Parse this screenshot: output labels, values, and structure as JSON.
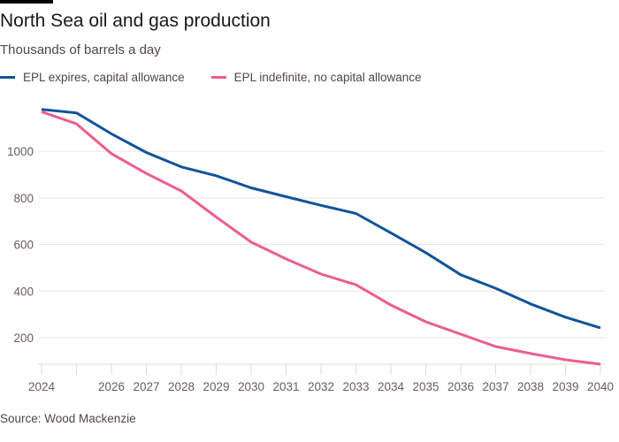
{
  "header": {
    "title": "North Sea oil and gas production",
    "subtitle": "Thousands of barrels a day"
  },
  "legend": [
    {
      "label": "EPL expires, capital allowance",
      "color": "#0f5499"
    },
    {
      "label": "EPL indefinite, no capital allowance",
      "color": "#eb5e8d"
    }
  ],
  "footer": {
    "source": "Source: Wood Mackenzie"
  },
  "chart_data": {
    "type": "line",
    "title": "North Sea oil and gas production",
    "subtitle": "Thousands of barrels a day",
    "xlabel": "",
    "ylabel": "Thousands of barrels a day",
    "x": [
      2024,
      2025,
      2026,
      2027,
      2028,
      2029,
      2030,
      2031,
      2032,
      2033,
      2034,
      2035,
      2036,
      2037,
      2038,
      2039,
      2040
    ],
    "x_tick_labels": [
      "2024",
      "",
      "2026",
      "2027",
      "2028",
      "2029",
      "2030",
      "2031",
      "2032",
      "2033",
      "2034",
      "2035",
      "2036",
      "2037",
      "2038",
      "2039",
      "2040"
    ],
    "y_ticks": [
      200,
      400,
      600,
      800,
      1000
    ],
    "ylim": [
      86,
      1200
    ],
    "grid": true,
    "legend_position": "top-left",
    "series": [
      {
        "name": "EPL expires, capital allowance",
        "color": "#0f5499",
        "values": [
          1180,
          1165,
          1075,
          995,
          933,
          895,
          843,
          805,
          768,
          733,
          650,
          565,
          470,
          412,
          345,
          288,
          242
        ]
      },
      {
        "name": "EPL indefinite, no capital allowance",
        "color": "#eb5e8d",
        "values": [
          1170,
          1118,
          990,
          905,
          830,
          718,
          610,
          538,
          473,
          427,
          340,
          268,
          215,
          162,
          132,
          105,
          86
        ]
      }
    ]
  }
}
